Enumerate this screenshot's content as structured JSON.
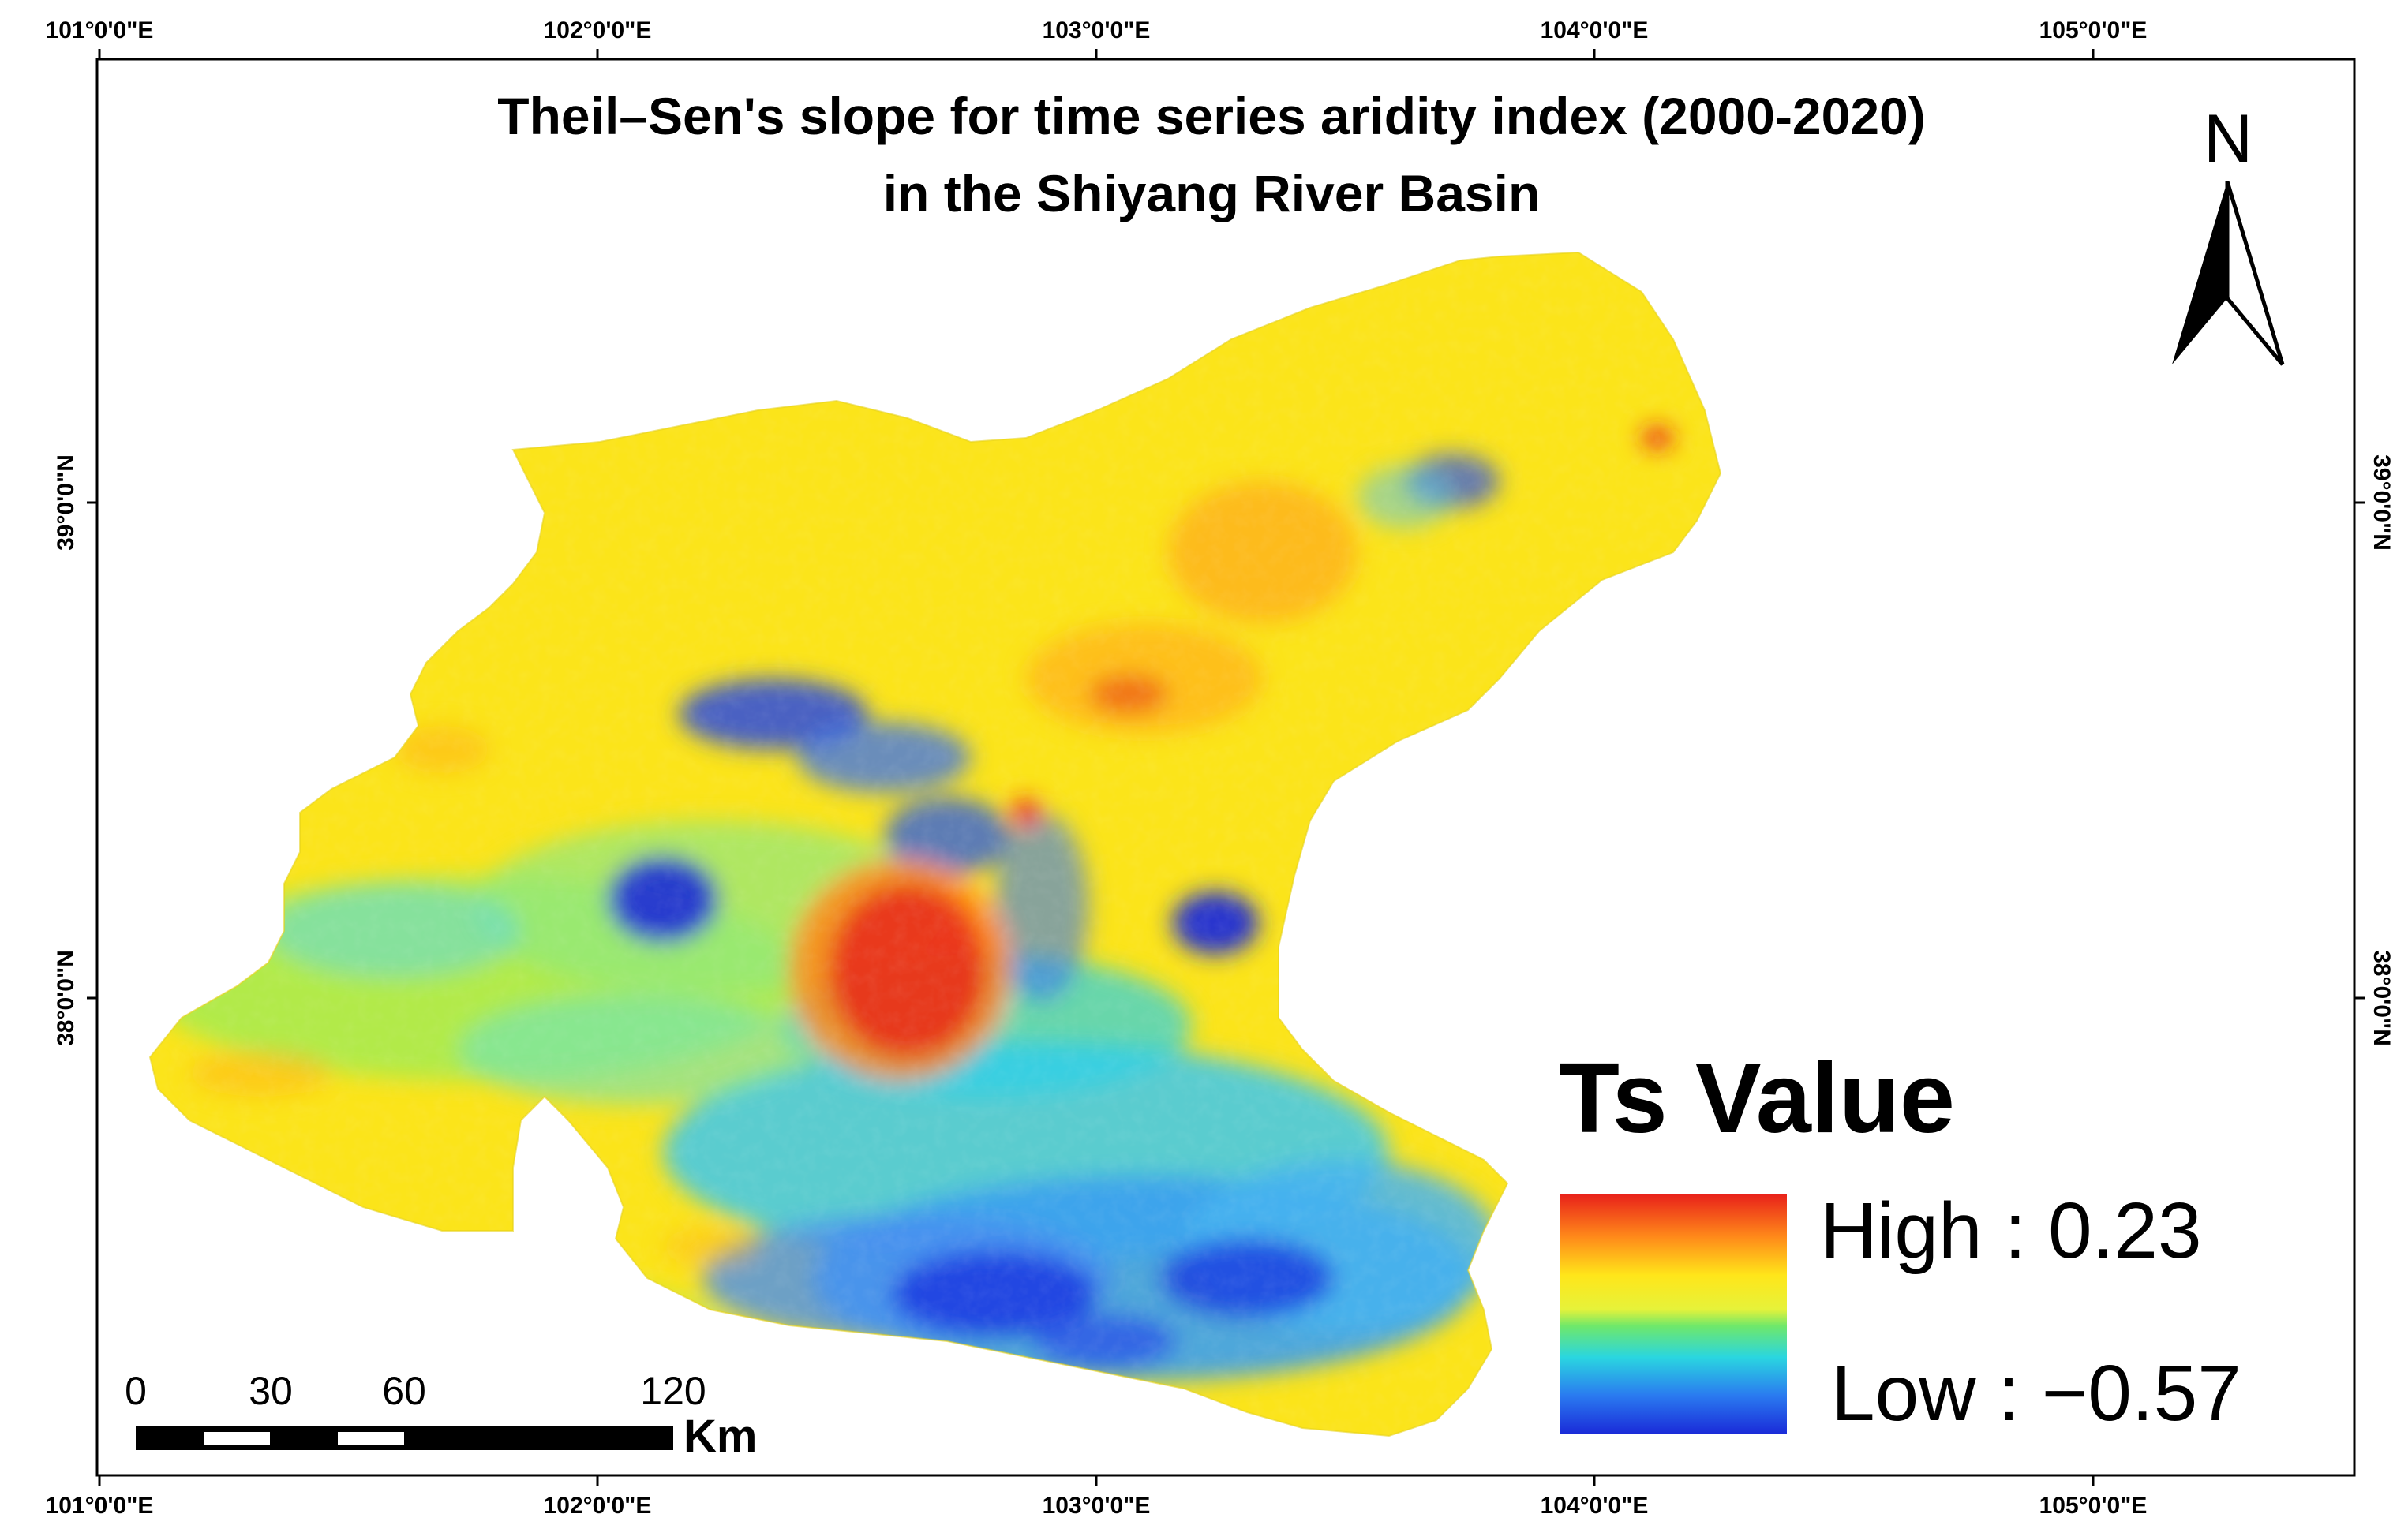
{
  "map": {
    "title_line1": "Theil–Sen's slope for time series aridity index (2000-2020)",
    "title_line2": "in the Shiyang River Basin"
  },
  "axes": {
    "longitude_ticks": [
      "101°0'0\"E",
      "102°0'0\"E",
      "103°0'0\"E",
      "104°0'0\"E",
      "105°0'0\"E"
    ],
    "latitude_ticks": [
      "39°0'0\"N",
      "38°0'0\"N"
    ]
  },
  "north_arrow": {
    "label": "N"
  },
  "legend": {
    "title": "Ts Value",
    "high_label": "High : 0.23",
    "low_label": "Low : −0.57",
    "high_value": 0.23,
    "low_value": -0.57,
    "colors": [
      "#e8201a",
      "#ff9a1a",
      "#ffe61a",
      "#e8f23a",
      "#6fe86a",
      "#2ad6e0",
      "#2a7af0",
      "#1a2ad8"
    ]
  },
  "scale_bar": {
    "labels": [
      "0",
      "30",
      "60",
      "120"
    ],
    "unit": "Km"
  },
  "colors": {
    "basin_base": "#fbe41a",
    "high": "#e8201a",
    "low": "#1a2ad8"
  }
}
